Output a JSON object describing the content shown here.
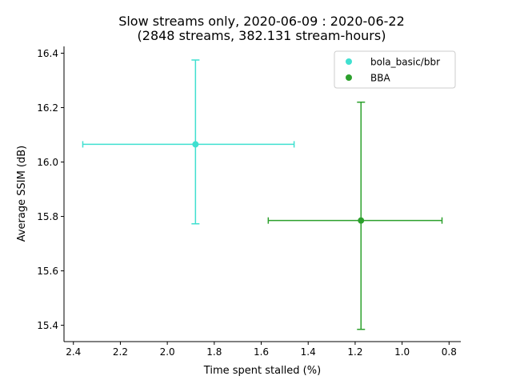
{
  "chart_data": {
    "type": "scatter",
    "title_line1": "Slow streams only, 2020-06-09 : 2020-06-22",
    "title_line2": "(2848 streams, 382.131 stream-hours)",
    "xlabel": "Time spent stalled (%)",
    "ylabel": "Average SSIM (dB)",
    "x_inverted": true,
    "xlim": [
      2.44,
      0.75
    ],
    "ylim": [
      15.34,
      16.425
    ],
    "xticks": [
      2.4,
      2.2,
      2.0,
      1.8,
      1.6,
      1.4,
      1.2,
      1.0,
      0.8
    ],
    "xtick_labels": [
      "2.4",
      "2.2",
      "2.0",
      "1.8",
      "1.6",
      "1.4",
      "1.2",
      "1.0",
      "0.8"
    ],
    "yticks": [
      15.4,
      15.6,
      15.8,
      16.0,
      16.2,
      16.4
    ],
    "ytick_labels": [
      "15.4",
      "15.6",
      "15.8",
      "16.0",
      "16.2",
      "16.4"
    ],
    "grid": false,
    "legend_position": "top-right",
    "series": [
      {
        "name": "bola_basic/bbr",
        "color": "#40e0d0",
        "x": 1.88,
        "y": 16.065,
        "x_err": [
          2.36,
          1.46
        ],
        "y_err": [
          15.773,
          16.375
        ]
      },
      {
        "name": "BBA",
        "color": "#2ca02c",
        "x": 1.175,
        "y": 15.785,
        "x_err": [
          1.57,
          0.83
        ],
        "y_err": [
          15.385,
          16.22
        ]
      }
    ]
  }
}
